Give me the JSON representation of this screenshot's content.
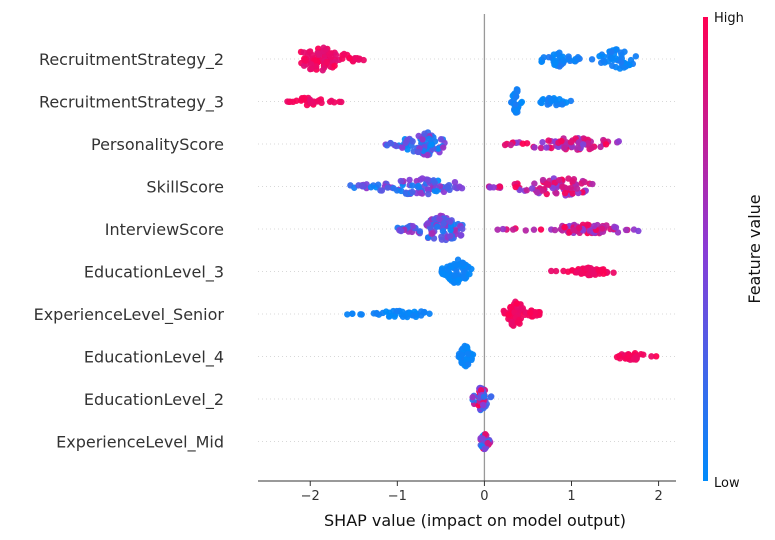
{
  "chart_data": {
    "type": "scatter",
    "subtype": "shap-beeswarm",
    "title": "",
    "xlabel": "SHAP value (impact on model output)",
    "ylabel": "",
    "xlim": [
      -2.6,
      2.2
    ],
    "xticks": [
      "−2",
      "−1",
      "0",
      "1",
      "2"
    ],
    "xtick_values": [
      -2,
      -1,
      0,
      1,
      2
    ],
    "colorbar": {
      "label": "Feature value",
      "high": "High",
      "low": "Low"
    },
    "colors": {
      "low": "#008bfb",
      "high": "#ff0052",
      "zero_line": "#999999",
      "row_line": "#cccccc"
    },
    "features": [
      {
        "name": "RecruitmentStrategy_2",
        "groups": [
          {
            "min": -2.15,
            "max": -1.38,
            "center": -1.9,
            "n": 90,
            "spread": 13,
            "vmin": 0.85,
            "vmax": 1.0
          },
          {
            "min": 0.65,
            "max": 1.15,
            "center": 0.85,
            "n": 40,
            "spread": 8,
            "vmin": 0.0,
            "vmax": 0.12
          },
          {
            "min": 1.2,
            "max": 1.8,
            "center": 1.55,
            "n": 45,
            "spread": 11,
            "vmin": 0.0,
            "vmax": 0.12
          }
        ]
      },
      {
        "name": "RecruitmentStrategy_3",
        "groups": [
          {
            "min": -2.3,
            "max": -1.6,
            "center": -2.05,
            "n": 30,
            "spread": 4,
            "vmin": 0.88,
            "vmax": 1.0
          },
          {
            "min": 0.3,
            "max": 0.45,
            "center": 0.37,
            "n": 30,
            "spread": 13,
            "vmin": 0.0,
            "vmax": 0.1
          },
          {
            "min": 0.6,
            "max": 1.0,
            "center": 0.8,
            "n": 25,
            "spread": 5,
            "vmin": 0.0,
            "vmax": 0.1
          }
        ]
      },
      {
        "name": "PersonalityScore",
        "groups": [
          {
            "min": -1.15,
            "max": -0.45,
            "center": -0.65,
            "n": 75,
            "spread": 12,
            "vmin": 0.0,
            "vmax": 0.6
          },
          {
            "min": 0.2,
            "max": 1.6,
            "center": 1.0,
            "n": 75,
            "spread": 7,
            "vmin": 0.45,
            "vmax": 1.0
          }
        ]
      },
      {
        "name": "SkillScore",
        "groups": [
          {
            "min": -1.55,
            "max": -0.25,
            "center": -0.75,
            "n": 90,
            "spread": 9,
            "vmin": 0.0,
            "vmax": 0.6
          },
          {
            "min": 0.05,
            "max": 1.25,
            "center": 0.85,
            "n": 85,
            "spread": 10,
            "vmin": 0.45,
            "vmax": 1.0
          }
        ]
      },
      {
        "name": "InterviewScore",
        "groups": [
          {
            "min": -1.0,
            "max": -0.25,
            "center": -0.5,
            "n": 100,
            "spread": 14,
            "vmin": 0.0,
            "vmax": 0.65
          },
          {
            "min": 0.15,
            "max": 1.85,
            "center": 1.2,
            "n": 80,
            "spread": 5,
            "vmin": 0.45,
            "vmax": 1.0
          }
        ]
      },
      {
        "name": "EducationLevel_3",
        "groups": [
          {
            "min": -0.5,
            "max": -0.15,
            "center": -0.32,
            "n": 70,
            "spread": 13,
            "vmin": 0.0,
            "vmax": 0.08
          },
          {
            "min": 0.75,
            "max": 1.6,
            "center": 1.2,
            "n": 50,
            "spread": 4,
            "vmin": 0.9,
            "vmax": 1.0
          }
        ]
      },
      {
        "name": "ExperienceLevel_Senior",
        "groups": [
          {
            "min": -1.58,
            "max": -0.62,
            "center": -0.9,
            "n": 40,
            "spread": 4,
            "vmin": 0.0,
            "vmax": 0.08
          },
          {
            "min": 0.22,
            "max": 0.65,
            "center": 0.35,
            "n": 70,
            "spread": 13,
            "vmin": 0.9,
            "vmax": 1.0
          }
        ]
      },
      {
        "name": "EducationLevel_4",
        "groups": [
          {
            "min": -0.3,
            "max": -0.13,
            "center": -0.22,
            "n": 45,
            "spread": 12,
            "vmin": 0.0,
            "vmax": 0.08
          },
          {
            "min": 1.5,
            "max": 1.98,
            "center": 1.7,
            "n": 30,
            "spread": 4,
            "vmin": 0.9,
            "vmax": 1.0
          }
        ]
      },
      {
        "name": "EducationLevel_2",
        "groups": [
          {
            "min": -0.15,
            "max": 0.08,
            "center": -0.03,
            "n": 55,
            "spread": 13,
            "vmin": 0.0,
            "vmax": 1.0
          }
        ]
      },
      {
        "name": "ExperienceLevel_Mid",
        "groups": [
          {
            "min": -0.05,
            "max": 0.07,
            "center": 0.0,
            "n": 40,
            "spread": 9,
            "vmin": 0.0,
            "vmax": 1.0
          }
        ]
      }
    ]
  }
}
